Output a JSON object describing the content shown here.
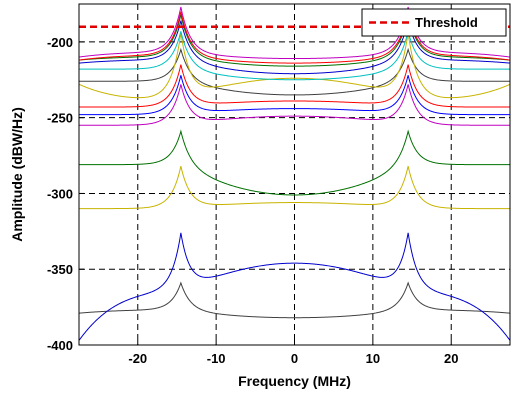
{
  "chart_data": {
    "type": "line",
    "xlabel": "Frequency (MHz)",
    "ylabel": "Amplitude (dBW/Hz)",
    "xlim": [
      -27.5,
      27.5
    ],
    "ylim": [
      -400,
      -175
    ],
    "xticks": [
      -20,
      -10,
      0,
      10,
      20
    ],
    "xtick_labels": [
      "-20",
      "-10",
      "0",
      "10",
      "20"
    ],
    "yticks": [
      -400,
      -350,
      -300,
      -250,
      -200
    ],
    "ytick_labels": [
      "-400",
      "-350",
      "-300",
      "-250",
      "-200"
    ],
    "grid": "dashed",
    "legend": {
      "position": "top-right",
      "entries": [
        "Threshold"
      ]
    },
    "threshold": {
      "name": "Threshold",
      "value": -190,
      "color": "#e00000"
    },
    "peak_frequency": 14.5,
    "series": [
      {
        "color": "#404040",
        "edge": -377,
        "peak": -359,
        "center": -382,
        "edge_drop": -379
      },
      {
        "color": "#0000cc",
        "edge": -366,
        "peak": -326,
        "center": -346,
        "edge_drop": -397
      },
      {
        "color": "#c8b400",
        "edge": -310,
        "peak": -282,
        "center": -306,
        "edge_drop": -310
      },
      {
        "color": "#007000",
        "edge": -281,
        "peak": -259,
        "center": -301,
        "edge_drop": -281
      },
      {
        "color": "#c000c0",
        "edge": -255,
        "peak": -228,
        "center": -249,
        "edge_drop": -255
      },
      {
        "color": "#0000ff",
        "edge": -248,
        "peak": -222,
        "center": -244,
        "edge_drop": -248
      },
      {
        "color": "#ff0000",
        "edge": -243,
        "peak": -215,
        "center": -239,
        "edge_drop": -243
      },
      {
        "color": "#404040",
        "edge": -226,
        "peak": -205,
        "center": -235,
        "edge_drop": -226
      },
      {
        "color": "#c8b400",
        "edge": -238,
        "peak": -194,
        "center": -224,
        "edge_drop": -228
      },
      {
        "color": "#00c0c0",
        "edge": -218,
        "peak": -193,
        "center": -225,
        "edge_drop": -218
      },
      {
        "color": "#0000cc",
        "edge": -212,
        "peak": -186,
        "center": -221,
        "edge_drop": -214
      },
      {
        "color": "#007000",
        "edge": -210,
        "peak": -182,
        "center": -216,
        "edge_drop": -212
      },
      {
        "color": "#ff0000",
        "edge": -209,
        "peak": -180,
        "center": -214,
        "edge_drop": -212
      },
      {
        "color": "#c000c0",
        "edge": -207,
        "peak": -177,
        "center": -211,
        "edge_drop": -210
      }
    ]
  }
}
